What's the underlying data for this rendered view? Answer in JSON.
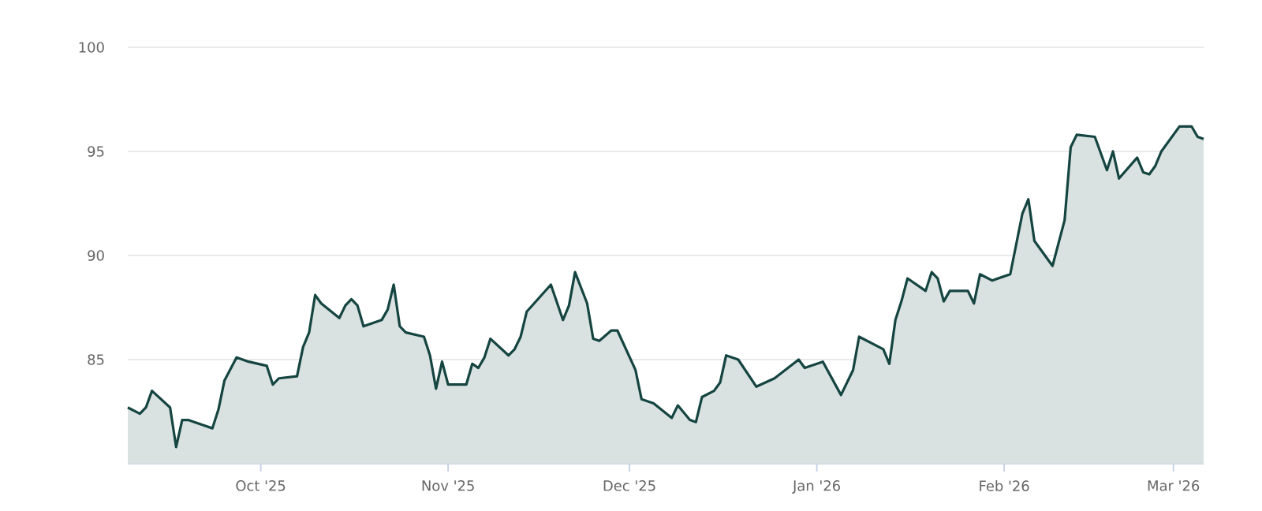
{
  "chart_data": {
    "type": "area",
    "color": "#154541",
    "grid": "y",
    "x": [
      "2025-09-09",
      "2025-09-11",
      "2025-09-12",
      "2025-09-13",
      "2025-09-16",
      "2025-09-17",
      "2025-09-18",
      "2025-09-19",
      "2025-09-20",
      "2025-09-23",
      "2025-09-24",
      "2025-09-25",
      "2025-09-27",
      "2025-09-29",
      "2025-10-02",
      "2025-10-03",
      "2025-10-04",
      "2025-10-07",
      "2025-10-08",
      "2025-10-09",
      "2025-10-10",
      "2025-10-11",
      "2025-10-14",
      "2025-10-15",
      "2025-10-16",
      "2025-10-17",
      "2025-10-18",
      "2025-10-21",
      "2025-10-22",
      "2025-10-23",
      "2025-10-24",
      "2025-10-25",
      "2025-10-28",
      "2025-10-29",
      "2025-10-30",
      "2025-10-31",
      "2025-11-01",
      "2025-11-04",
      "2025-11-05",
      "2025-11-06",
      "2025-11-07",
      "2025-11-08",
      "2025-11-11",
      "2025-11-12",
      "2025-11-13",
      "2025-11-14",
      "2025-11-18",
      "2025-11-20",
      "2025-11-21",
      "2025-11-22",
      "2025-11-24",
      "2025-11-25",
      "2025-11-26",
      "2025-11-28",
      "2025-11-29",
      "2025-12-02",
      "2025-12-03",
      "2025-12-05",
      "2025-12-08",
      "2025-12-09",
      "2025-12-11",
      "2025-12-12",
      "2025-12-13",
      "2025-12-15",
      "2025-12-16",
      "2025-12-17",
      "2025-12-19",
      "2025-12-22",
      "2025-12-25",
      "2025-12-29",
      "2025-12-30",
      "2026-01-02",
      "2026-01-05",
      "2026-01-07",
      "2026-01-08",
      "2026-01-12",
      "2026-01-13",
      "2026-01-14",
      "2026-01-15",
      "2026-01-16",
      "2026-01-19",
      "2026-01-20",
      "2026-01-21",
      "2026-01-22",
      "2026-01-23",
      "2026-01-26",
      "2026-01-27",
      "2026-01-28",
      "2026-01-30",
      "2026-02-02",
      "2026-02-04",
      "2026-02-05",
      "2026-02-06",
      "2026-02-09",
      "2026-02-11",
      "2026-02-12",
      "2026-02-13",
      "2026-02-16",
      "2026-02-18",
      "2026-02-19",
      "2026-02-20",
      "2026-02-23",
      "2026-02-24",
      "2026-02-25",
      "2026-02-26",
      "2026-02-27",
      "2026-03-02",
      "2026-03-04",
      "2026-03-05",
      "2026-03-06"
    ],
    "values": [
      82.7,
      82.4,
      82.7,
      83.5,
      82.7,
      80.8,
      82.1,
      82.1,
      82.0,
      81.7,
      82.6,
      84.0,
      85.1,
      84.9,
      84.7,
      83.8,
      84.1,
      84.2,
      85.6,
      86.3,
      88.1,
      87.7,
      87.0,
      87.6,
      87.9,
      87.6,
      86.6,
      86.9,
      87.4,
      88.6,
      86.6,
      86.3,
      86.1,
      85.2,
      83.6,
      84.9,
      83.8,
      83.8,
      84.8,
      84.6,
      85.1,
      86.0,
      85.2,
      85.5,
      86.1,
      87.3,
      88.6,
      86.9,
      87.6,
      89.2,
      87.7,
      86.0,
      85.9,
      86.4,
      86.4,
      84.5,
      83.1,
      82.9,
      82.2,
      82.8,
      82.1,
      82.0,
      83.2,
      83.5,
      83.9,
      85.2,
      85.0,
      83.7,
      84.1,
      85.0,
      84.6,
      84.9,
      83.3,
      84.5,
      86.1,
      85.5,
      84.8,
      86.9,
      87.8,
      88.9,
      88.3,
      89.2,
      88.9,
      87.8,
      88.3,
      88.3,
      87.7,
      89.1,
      88.8,
      89.1,
      92.0,
      92.7,
      90.7,
      89.5,
      91.7,
      95.2,
      95.8,
      95.7,
      94.1,
      95.0,
      93.7,
      94.7,
      94.0,
      93.9,
      94.3,
      95.0,
      96.2,
      96.2,
      95.7,
      95.6
    ],
    "xlim": [
      "2025-09-09",
      "2026-03-06"
    ],
    "xticks": [
      {
        "value": "2025-10-01",
        "label": "Oct '25"
      },
      {
        "value": "2025-11-01",
        "label": "Nov '25"
      },
      {
        "value": "2025-12-01",
        "label": "Dec '25"
      },
      {
        "value": "2026-01-01",
        "label": "Jan '26"
      },
      {
        "value": "2026-02-01",
        "label": "Feb '26"
      },
      {
        "value": "2026-03-01",
        "label": "Mar '26"
      }
    ],
    "ylim": [
      80,
      100
    ],
    "yticks": [
      85,
      90,
      95,
      100
    ]
  }
}
